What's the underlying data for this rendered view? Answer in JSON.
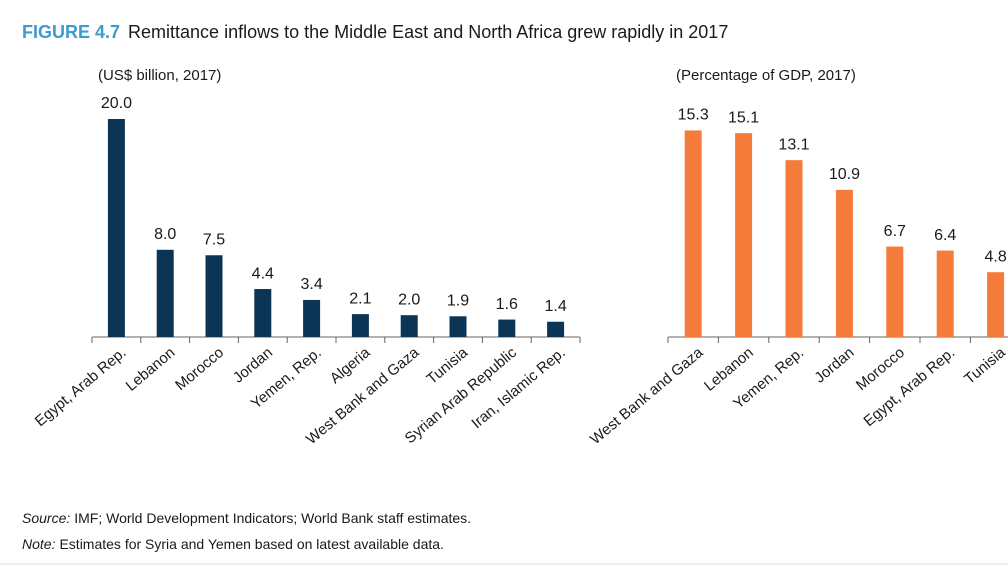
{
  "figure": {
    "label": "FIGURE 4.7",
    "title": "Remittance inflows to the Middle East and North Africa grew rapidly in 2017"
  },
  "chart_data": [
    {
      "type": "bar",
      "subtitle": "(US$ billion, 2017)",
      "color": "#0c3455",
      "categories": [
        "Egypt, Arab Rep.",
        "Lebanon",
        "Morocco",
        "Jordan",
        "Yemen, Rep.",
        "Algeria",
        "West Bank and Gaza",
        "Tunisia",
        "Syrian Arab Republic",
        "Iran, Islamic Rep."
      ],
      "values": [
        20.0,
        8.0,
        7.5,
        4.4,
        3.4,
        2.1,
        2.0,
        1.9,
        1.6,
        1.4
      ],
      "value_labels": [
        "20.0",
        "8.0",
        "7.5",
        "4.4",
        "3.4",
        "2.1",
        "2.0",
        "1.9",
        "1.6",
        "1.4"
      ]
    },
    {
      "type": "bar",
      "subtitle": "(Percentage of GDP, 2017)",
      "color": "#f47b3a",
      "categories": [
        "West Bank and Gaza",
        "Lebanon",
        "Yemen, Rep.",
        "Jordan",
        "Morocco",
        "Egypt, Arab Rep.",
        "Tunisia"
      ],
      "values": [
        15.3,
        15.1,
        13.1,
        10.9,
        6.7,
        6.4,
        4.8
      ]
    }
  ],
  "source_label": "Source:",
  "source": "IMF; World Development Indicators; World Bank staff estimates.",
  "note_label": "Note:",
  "note": "Estimates for Syria and Yemen based on latest available data."
}
